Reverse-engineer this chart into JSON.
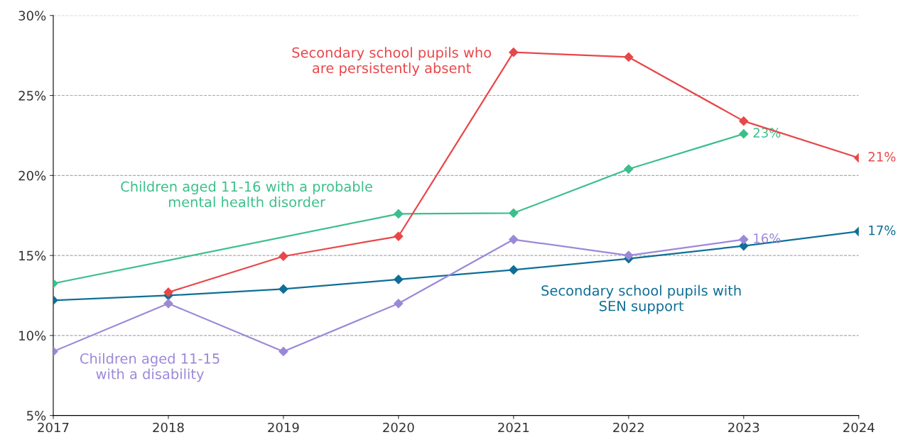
{
  "chart_data": {
    "type": "line",
    "x": [
      2017,
      2018,
      2019,
      2020,
      2021,
      2022,
      2023,
      2024
    ],
    "series": [
      {
        "name": "Secondary school pupils who\nare persistently absent",
        "color": "#e8474a",
        "x": [
          2018,
          2019,
          2020,
          2021,
          2022,
          2023,
          2024
        ],
        "values": [
          12.7,
          14.95,
          16.2,
          27.7,
          27.4,
          23.4,
          21.1
        ],
        "value_labels": [
          null,
          null,
          null,
          null,
          null,
          null,
          "21%"
        ]
      },
      {
        "name": "Children aged 11-16 with a probable\nmental health disorder",
        "color": "#3cbf8c",
        "x": [
          2017,
          2020,
          2021,
          2022,
          2023
        ],
        "values": [
          13.25,
          17.6,
          17.65,
          20.4,
          22.6
        ],
        "value_labels": [
          null,
          null,
          null,
          null,
          "23%"
        ]
      },
      {
        "name": "Secondary school pupils with\nSEN support",
        "color": "#0f6f96",
        "values": [
          12.2,
          12.5,
          12.9,
          13.5,
          14.1,
          14.8,
          15.6,
          16.5
        ],
        "value_labels": [
          null,
          null,
          null,
          null,
          null,
          null,
          null,
          "17%"
        ]
      },
      {
        "name": "Children aged 11-15\nwith a disability",
        "color": "#9c88d8",
        "x": [
          2017,
          2018,
          2019,
          2020,
          2021,
          2022,
          2023
        ],
        "values": [
          9.0,
          12.0,
          9.0,
          12.0,
          16.0,
          15.0,
          16.0
        ],
        "value_labels": [
          null,
          null,
          null,
          null,
          null,
          null,
          "16%"
        ]
      }
    ],
    "xlim": [
      2017,
      2024
    ],
    "xticks": [
      2017,
      2018,
      2019,
      2020,
      2021,
      2022,
      2023,
      2024
    ],
    "ylim": [
      5,
      30
    ],
    "yticks": [
      {
        "value": 5,
        "label": "5%"
      },
      {
        "value": 10,
        "label": "10%"
      },
      {
        "value": 15,
        "label": "15%"
      },
      {
        "value": 20,
        "label": "20%"
      },
      {
        "value": 25,
        "label": "25%"
      },
      {
        "value": 30,
        "label": "30%"
      }
    ],
    "grid": "y",
    "marker": "diamond",
    "line_style": "solid",
    "legend": false
  }
}
